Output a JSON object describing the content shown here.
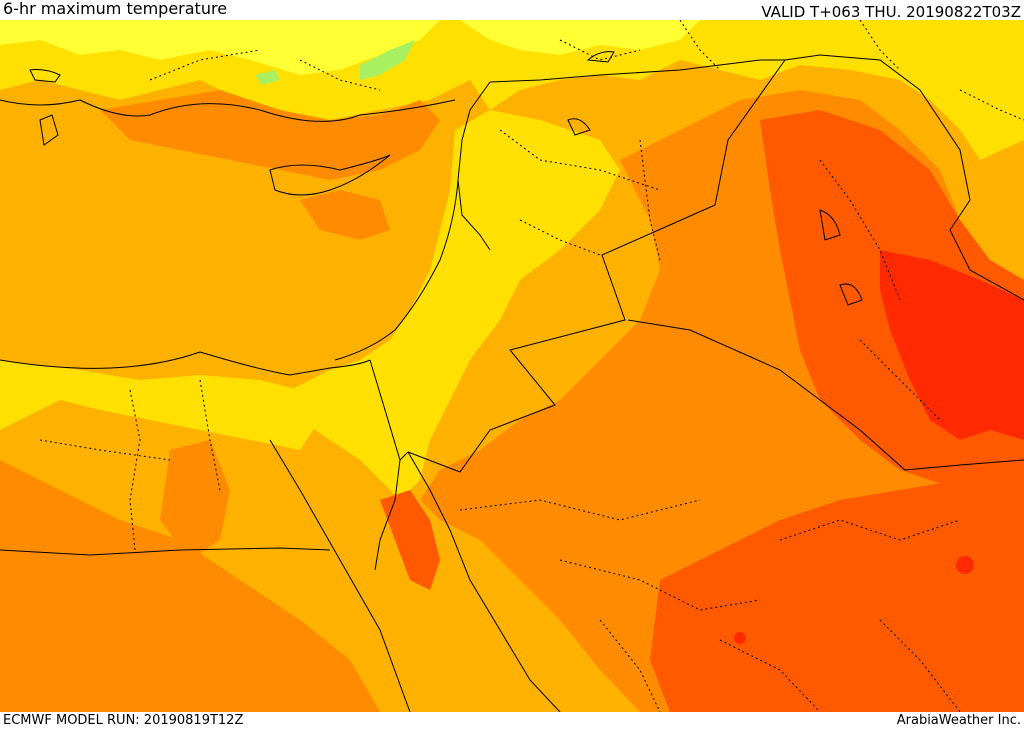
{
  "header": {
    "title": "6-hr maximum temperature",
    "valid": "VALID T+063 THU. 20190822T03Z"
  },
  "footer": {
    "model_run": "ECMWF MODEL RUN: 20190819T12Z",
    "credit": "ArabiaWeather Inc."
  },
  "colors": {
    "cool_green": "#a8f060",
    "pale_yellow": "#ffff33",
    "yellow": "#ffe000",
    "light_orange": "#ffb100",
    "orange": "#ff8c00",
    "dark_orange": "#ff5a00",
    "red": "#ff2a00",
    "border": "#000000"
  }
}
